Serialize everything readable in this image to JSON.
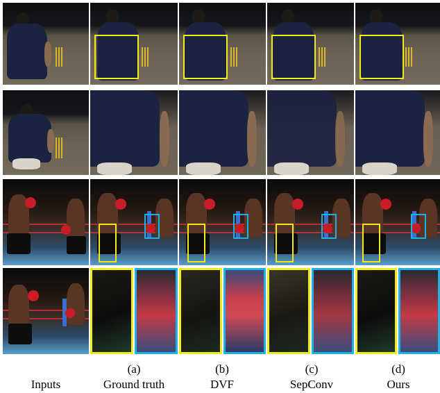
{
  "columns": [
    {
      "letter": "",
      "name": "Inputs"
    },
    {
      "letter": "(a)",
      "name": "Ground truth"
    },
    {
      "letter": "(b)",
      "name": "DVF"
    },
    {
      "letter": "(c)",
      "name": "SepConv"
    },
    {
      "letter": "(d)",
      "name": "Ours"
    }
  ],
  "colors": {
    "highlight_yellow": "#f2ea1b",
    "highlight_blue": "#1fb0e6"
  },
  "rows": [
    {
      "scene": "cricket-player",
      "content": "full-frame"
    },
    {
      "scene": "cricket-player",
      "content": "zoomed-crop"
    },
    {
      "scene": "boxing-match",
      "content": "full-frame"
    },
    {
      "scene": "boxing-match",
      "content": "zoomed-crops"
    }
  ]
}
